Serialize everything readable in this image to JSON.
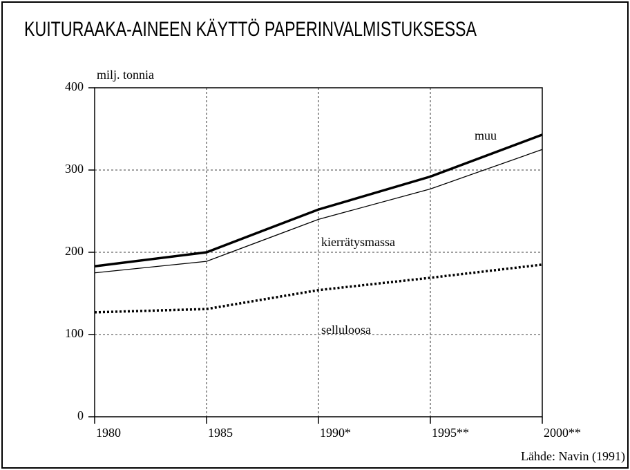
{
  "chart_data": {
    "type": "stacked-line",
    "title": "KUITURAAKA-AINEEN KÄYTTÖ PAPERINVALMISTUKSESSA",
    "y_label": "milj. tonnia",
    "source": "Lähde: Navin (1991)",
    "categories": [
      "1980",
      "1985",
      "1990*",
      "1995**",
      "2000**"
    ],
    "series": [
      {
        "name": "selluloosa",
        "color": "#000000",
        "style": "dotted",
        "values": [
          127,
          131,
          154,
          169,
          185
        ]
      },
      {
        "name": "kierrätysmassa",
        "color": "#000000",
        "style": "thin",
        "values": [
          48,
          58,
          86,
          108,
          140
        ]
      },
      {
        "name": "muu",
        "color": "#000000",
        "style": "thick",
        "values": [
          8,
          11,
          12,
          15,
          18
        ]
      }
    ],
    "ylim": [
      0,
      400
    ],
    "yticks": [
      0,
      100,
      200,
      300,
      400
    ],
    "grid": true
  }
}
